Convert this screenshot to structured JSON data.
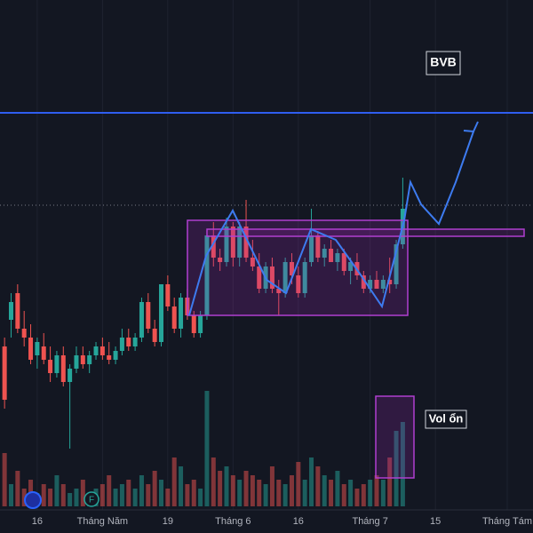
{
  "chart_data": {
    "type": "candlestick",
    "open": [
      21,
      24,
      27,
      23,
      22,
      20,
      21,
      19.5,
      18,
      20,
      17,
      18.5,
      20,
      19,
      20,
      21,
      20,
      19.5,
      20.5,
      22,
      21,
      22,
      26,
      23,
      21.5,
      28,
      25.5,
      23,
      26.5,
      24.5,
      22.5,
      24.5,
      33.5,
      31,
      30.5,
      34.5,
      31,
      34.5,
      31,
      30,
      27.5,
      30,
      27.5,
      27,
      30.5,
      29,
      27,
      30.5,
      33.5,
      31,
      32,
      30.5,
      31.5,
      29.5,
      30.5,
      29,
      27.5,
      28.5,
      27.5,
      28.5,
      28,
      32.5
    ],
    "high": [
      22,
      27,
      28,
      25,
      23.5,
      22,
      22.5,
      21,
      20.5,
      21,
      19,
      21,
      21,
      20.5,
      21.5,
      22,
      21.5,
      21,
      23,
      23,
      22.5,
      26.5,
      27,
      24,
      28,
      29,
      26.5,
      27,
      27.5,
      25,
      25,
      34,
      35,
      32,
      35.5,
      35,
      35,
      37.5,
      33,
      31.5,
      30.5,
      31,
      28.5,
      31,
      31.5,
      30,
      31,
      36.5,
      34,
      32.5,
      33,
      32,
      32,
      31,
      31.5,
      29.5,
      29,
      29.5,
      29,
      31,
      33,
      40
    ],
    "low": [
      14,
      22,
      22.5,
      21,
      19,
      18.5,
      19,
      17,
      17.5,
      16.5,
      9.5,
      18,
      18.5,
      18,
      19.5,
      19.5,
      19,
      19,
      20,
      20.5,
      20.5,
      21.5,
      22.5,
      21,
      21,
      25,
      22.5,
      22,
      24,
      22,
      22,
      24,
      30,
      29.5,
      30,
      30,
      30,
      30.5,
      29.5,
      27,
      27,
      27,
      24.5,
      26.5,
      28,
      26.5,
      26.5,
      30,
      30.5,
      30,
      30.5,
      29.5,
      29,
      28,
      28.5,
      27,
      27,
      27.5,
      27,
      27,
      27.5,
      32
    ],
    "close": [
      15,
      26,
      23,
      22,
      19.5,
      21.5,
      19.5,
      18,
      20,
      17,
      18.5,
      20,
      19,
      20,
      21,
      20,
      19.5,
      20.5,
      22,
      21,
      22,
      26,
      23,
      21.5,
      28,
      25.5,
      23,
      26.5,
      24.5,
      22.5,
      24.5,
      33.5,
      31,
      30.5,
      34.5,
      31,
      34.5,
      31,
      30,
      27.5,
      30,
      27.5,
      27,
      30.5,
      29,
      27,
      30.5,
      33.5,
      31,
      32,
      30.5,
      31.5,
      29.5,
      30.5,
      29,
      27.5,
      28.5,
      27.5,
      28.5,
      28,
      32.5,
      36.5
    ],
    "volume": [
      60,
      25,
      40,
      20,
      30,
      15,
      25,
      20,
      35,
      25,
      15,
      20,
      30,
      15,
      20,
      25,
      35,
      20,
      25,
      30,
      20,
      35,
      25,
      40,
      30,
      20,
      55,
      45,
      25,
      30,
      20,
      130,
      55,
      40,
      45,
      35,
      30,
      40,
      35,
      30,
      25,
      45,
      30,
      25,
      35,
      50,
      30,
      55,
      45,
      35,
      30,
      40,
      25,
      30,
      20,
      25,
      30,
      35,
      30,
      55,
      85,
      95
    ],
    "up_color": "#26a69a",
    "down_color": "#ef5350",
    "xlim": [
      -0.7,
      80.95
    ],
    "ylim": [
      0,
      60
    ],
    "volume_lim": [
      0,
      150
    ],
    "xticks": [
      {
        "value": 5,
        "label": "16"
      },
      {
        "value": 15,
        "label": "Tháng Năm"
      },
      {
        "value": 25,
        "label": "19"
      },
      {
        "value": 35,
        "label": "Tháng 6"
      },
      {
        "value": 45,
        "label": "16"
      },
      {
        "value": 56,
        "label": "Tháng 7"
      },
      {
        "value": 66,
        "label": "15"
      },
      {
        "value": 77,
        "label": "Tháng Tám"
      }
    ],
    "grid": true,
    "hlines": [
      {
        "value": 47.3,
        "color": "#2f5ef0",
        "style": "solid"
      },
      {
        "value": 36.9,
        "color": "#787b86",
        "style": "dotted"
      }
    ],
    "annotations": [
      "BVB",
      "Vol ổn"
    ],
    "event_marker": "F"
  }
}
